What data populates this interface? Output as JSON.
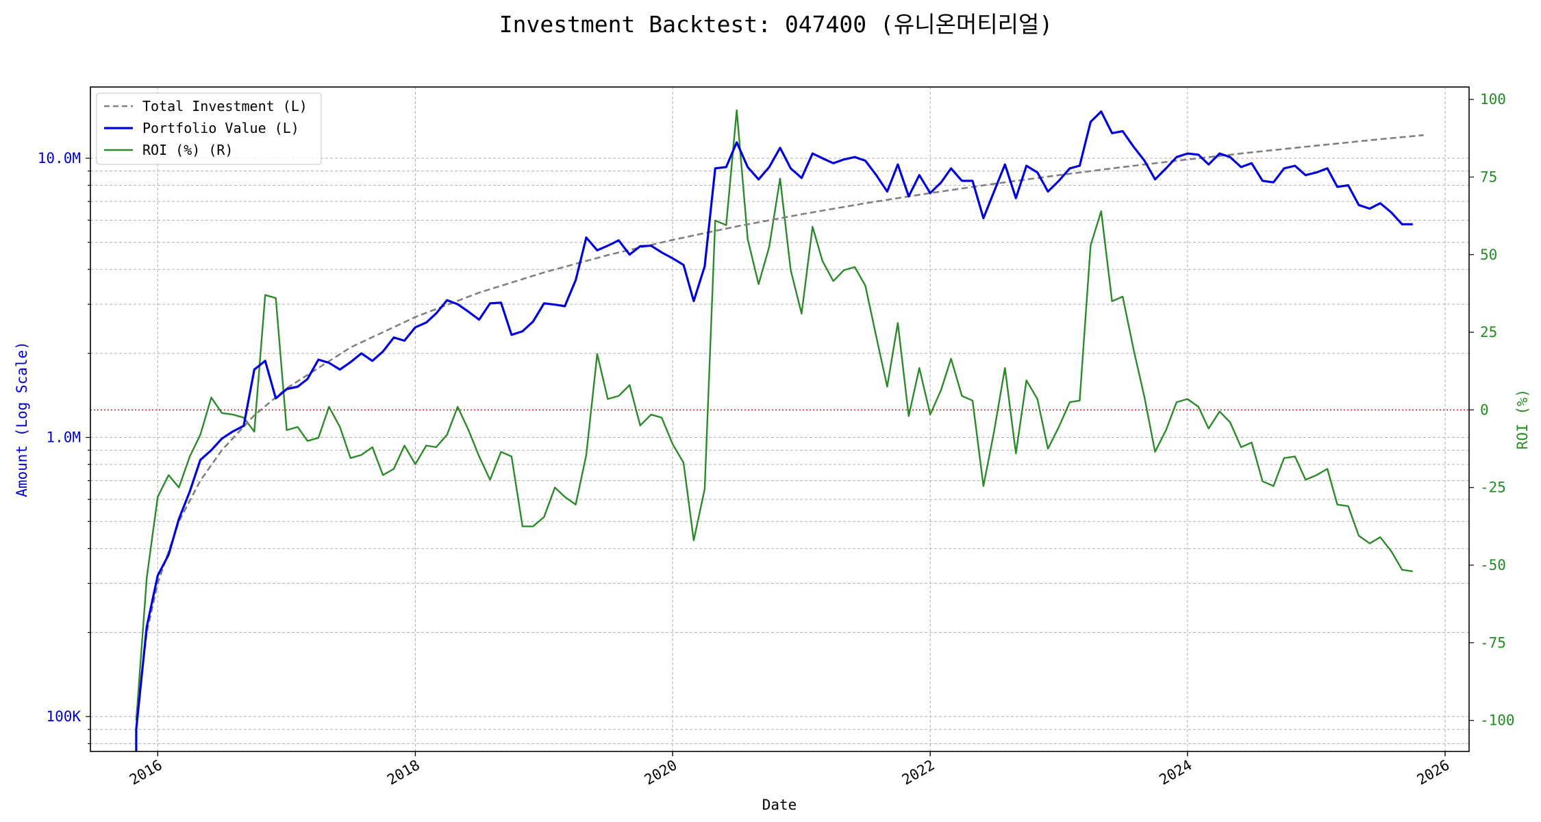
{
  "chart_data": {
    "type": "line",
    "title": "Investment Backtest: 047400 (유니온머티리얼)",
    "xlabel": "Date",
    "ylabel_left": "Amount (Log Scale)",
    "ylabel_right": "ROI (%)",
    "left_scale": "log",
    "left_ylim": [
      75000,
      18000000
    ],
    "right_ylim": [
      -110,
      104
    ],
    "xlim": [
      "2015-06-24",
      "2026-03-10"
    ],
    "x_ticks": [
      "2016",
      "2018",
      "2020",
      "2022",
      "2024",
      "2026"
    ],
    "left_ticks": [
      "100K",
      "1.0M",
      "10.0M"
    ],
    "right_ticks": [
      "-100",
      "-75",
      "-50",
      "-25",
      "0",
      "25",
      "50",
      "75",
      "100"
    ],
    "grid": true,
    "legend_position": "top-left",
    "reference_line": {
      "axis": "right",
      "value": 0,
      "color": "#d62728",
      "style": "dotted"
    },
    "colors": {
      "total_investment": "#808080",
      "portfolio_value": "#0000dd",
      "roi": "#2a8a2a",
      "left_axis": "#0000cc",
      "right_axis": "#228b22"
    },
    "series": [
      {
        "name": "Total Investment (L)",
        "axis": "left",
        "style": "dashed",
        "points": [
          [
            "2015-11-01",
            100000
          ],
          [
            "2015-12-01",
            200000
          ],
          [
            "2016-01-01",
            300000
          ],
          [
            "2016-03-01",
            500000
          ],
          [
            "2016-05-01",
            700000
          ],
          [
            "2016-07-01",
            900000
          ],
          [
            "2016-10-01",
            1200000
          ],
          [
            "2017-01-01",
            1500000
          ],
          [
            "2017-07-01",
            2100000
          ],
          [
            "2018-01-01",
            2700000
          ],
          [
            "2018-07-01",
            3300000
          ],
          [
            "2019-01-01",
            3900000
          ],
          [
            "2019-07-01",
            4500000
          ],
          [
            "2020-01-01",
            5100000
          ],
          [
            "2020-07-01",
            5700000
          ],
          [
            "2021-01-01",
            6300000
          ],
          [
            "2021-07-01",
            6900000
          ],
          [
            "2022-01-01",
            7500000
          ],
          [
            "2022-07-01",
            8100000
          ],
          [
            "2023-01-01",
            8700000
          ],
          [
            "2023-07-01",
            9300000
          ],
          [
            "2024-01-01",
            9900000
          ],
          [
            "2024-07-01",
            10500000
          ],
          [
            "2025-01-01",
            11100000
          ],
          [
            "2025-07-01",
            11700000
          ],
          [
            "2025-11-01",
            12100000
          ]
        ]
      },
      {
        "name": "Portfolio Value (L)",
        "axis": "left",
        "style": "solid",
        "points": [
          [
            "2015-11-01",
            70000
          ],
          [
            "2015-11-01",
            90000
          ],
          [
            "2015-12-01",
            210000
          ],
          [
            "2016-01-01",
            320000
          ],
          [
            "2016-02-01",
            380000
          ],
          [
            "2016-03-01",
            510000
          ],
          [
            "2016-04-01",
            640000
          ],
          [
            "2016-05-01",
            830000
          ],
          [
            "2016-06-01",
            900000
          ],
          [
            "2016-07-01",
            990000
          ],
          [
            "2016-08-01",
            1050000
          ],
          [
            "2016-09-01",
            1100000
          ],
          [
            "2016-10-01",
            1750000
          ],
          [
            "2016-11-01",
            1880000
          ],
          [
            "2016-12-01",
            1380000
          ],
          [
            "2017-01-01",
            1490000
          ],
          [
            "2017-02-01",
            1520000
          ],
          [
            "2017-03-01",
            1620000
          ],
          [
            "2017-04-01",
            1900000
          ],
          [
            "2017-05-01",
            1850000
          ],
          [
            "2017-06-01",
            1750000
          ],
          [
            "2017-07-01",
            1860000
          ],
          [
            "2017-08-01",
            2000000
          ],
          [
            "2017-09-01",
            1880000
          ],
          [
            "2017-10-01",
            2030000
          ],
          [
            "2017-11-01",
            2280000
          ],
          [
            "2017-12-01",
            2220000
          ],
          [
            "2018-01-01",
            2480000
          ],
          [
            "2018-02-01",
            2580000
          ],
          [
            "2018-03-01",
            2780000
          ],
          [
            "2018-04-01",
            3100000
          ],
          [
            "2018-05-01",
            3000000
          ],
          [
            "2018-06-01",
            2820000
          ],
          [
            "2018-07-01",
            2640000
          ],
          [
            "2018-08-01",
            3020000
          ],
          [
            "2018-09-01",
            3040000
          ],
          [
            "2018-10-01",
            2330000
          ],
          [
            "2018-11-01",
            2400000
          ],
          [
            "2018-12-01",
            2600000
          ],
          [
            "2019-01-01",
            3020000
          ],
          [
            "2019-02-01",
            2990000
          ],
          [
            "2019-03-01",
            2950000
          ],
          [
            "2019-04-01",
            3660000
          ],
          [
            "2019-05-01",
            5200000
          ],
          [
            "2019-06-01",
            4680000
          ],
          [
            "2019-07-01",
            4860000
          ],
          [
            "2019-08-01",
            5080000
          ],
          [
            "2019-09-01",
            4520000
          ],
          [
            "2019-10-01",
            4840000
          ],
          [
            "2019-11-01",
            4860000
          ],
          [
            "2019-12-01",
            4600000
          ],
          [
            "2020-01-01",
            4380000
          ],
          [
            "2020-02-01",
            4150000
          ],
          [
            "2020-03-01",
            3080000
          ],
          [
            "2020-04-01",
            4100000
          ],
          [
            "2020-05-01",
            9200000
          ],
          [
            "2020-06-01",
            9300000
          ],
          [
            "2020-07-01",
            11400000
          ],
          [
            "2020-08-01",
            9300000
          ],
          [
            "2020-09-01",
            8400000
          ],
          [
            "2020-10-01",
            9300000
          ],
          [
            "2020-11-01",
            10900000
          ],
          [
            "2020-12-01",
            9200000
          ],
          [
            "2021-01-01",
            8500000
          ],
          [
            "2021-02-01",
            10400000
          ],
          [
            "2021-03-01",
            10000000
          ],
          [
            "2021-04-01",
            9600000
          ],
          [
            "2021-05-01",
            9900000
          ],
          [
            "2021-06-01",
            10100000
          ],
          [
            "2021-07-01",
            9800000
          ],
          [
            "2021-08-01",
            8700000
          ],
          [
            "2021-09-01",
            7600000
          ],
          [
            "2021-10-01",
            9500000
          ],
          [
            "2021-11-01",
            7300000
          ],
          [
            "2021-12-01",
            8700000
          ],
          [
            "2022-01-01",
            7500000
          ],
          [
            "2022-02-01",
            8200000
          ],
          [
            "2022-03-01",
            9200000
          ],
          [
            "2022-04-01",
            8300000
          ],
          [
            "2022-05-01",
            8300000
          ],
          [
            "2022-06-01",
            6100000
          ],
          [
            "2022-07-01",
            7600000
          ],
          [
            "2022-08-01",
            9500000
          ],
          [
            "2022-09-01",
            7200000
          ],
          [
            "2022-10-01",
            9400000
          ],
          [
            "2022-11-01",
            8900000
          ],
          [
            "2022-12-01",
            7600000
          ],
          [
            "2023-01-01",
            8300000
          ],
          [
            "2023-02-01",
            9200000
          ],
          [
            "2023-03-01",
            9400000
          ],
          [
            "2023-04-01",
            13500000
          ],
          [
            "2023-05-01",
            14700000
          ],
          [
            "2023-06-01",
            12300000
          ],
          [
            "2023-07-01",
            12500000
          ],
          [
            "2023-08-01",
            11000000
          ],
          [
            "2023-09-01",
            9800000
          ],
          [
            "2023-10-01",
            8400000
          ],
          [
            "2023-11-01",
            9200000
          ],
          [
            "2023-12-01",
            10100000
          ],
          [
            "2024-01-01",
            10400000
          ],
          [
            "2024-02-01",
            10300000
          ],
          [
            "2024-03-01",
            9500000
          ],
          [
            "2024-04-01",
            10400000
          ],
          [
            "2024-05-01",
            10100000
          ],
          [
            "2024-06-01",
            9300000
          ],
          [
            "2024-07-01",
            9600000
          ],
          [
            "2024-08-01",
            8300000
          ],
          [
            "2024-09-01",
            8200000
          ],
          [
            "2024-10-01",
            9200000
          ],
          [
            "2024-11-01",
            9400000
          ],
          [
            "2024-12-01",
            8700000
          ],
          [
            "2025-01-01",
            8900000
          ],
          [
            "2025-02-01",
            9200000
          ],
          [
            "2025-03-01",
            7900000
          ],
          [
            "2025-04-01",
            8000000
          ],
          [
            "2025-05-01",
            6800000
          ],
          [
            "2025-06-01",
            6600000
          ],
          [
            "2025-07-01",
            6900000
          ],
          [
            "2025-08-01",
            6400000
          ],
          [
            "2025-09-01",
            5800000
          ],
          [
            "2025-10-01",
            5800000
          ]
        ]
      },
      {
        "name": "ROI (%) (R)",
        "axis": "right",
        "style": "solid",
        "points": [
          [
            "2015-11-01",
            -100
          ],
          [
            "2015-12-01",
            -54
          ],
          [
            "2016-01-01",
            -28
          ],
          [
            "2016-02-01",
            -21
          ],
          [
            "2016-03-01",
            -25
          ],
          [
            "2016-04-01",
            -15
          ],
          [
            "2016-05-01",
            -8
          ],
          [
            "2016-06-01",
            4
          ],
          [
            "2016-07-01",
            -1
          ],
          [
            "2016-08-01",
            -1.5
          ],
          [
            "2016-09-01",
            -2.5
          ],
          [
            "2016-10-01",
            -7
          ],
          [
            "2016-11-01",
            37
          ],
          [
            "2016-12-01",
            36
          ],
          [
            "2017-01-01",
            -6.5
          ],
          [
            "2017-02-01",
            -5.5
          ],
          [
            "2017-03-01",
            -10
          ],
          [
            "2017-04-01",
            -9
          ],
          [
            "2017-05-01",
            1
          ],
          [
            "2017-06-01",
            -5.5
          ],
          [
            "2017-07-01",
            -15.5
          ],
          [
            "2017-08-01",
            -14.5
          ],
          [
            "2017-09-01",
            -12
          ],
          [
            "2017-10-01",
            -21
          ],
          [
            "2017-11-01",
            -19
          ],
          [
            "2017-12-01",
            -11.5
          ],
          [
            "2018-01-01",
            -17.5
          ],
          [
            "2018-02-01",
            -11.5
          ],
          [
            "2018-03-01",
            -12
          ],
          [
            "2018-04-01",
            -8
          ],
          [
            "2018-05-01",
            1
          ],
          [
            "2018-06-01",
            -6.5
          ],
          [
            "2018-07-01",
            -15
          ],
          [
            "2018-08-01",
            -22.5
          ],
          [
            "2018-09-01",
            -13.5
          ],
          [
            "2018-10-01",
            -15
          ],
          [
            "2018-11-01",
            -37.5
          ],
          [
            "2018-12-01",
            -37.5
          ],
          [
            "2019-01-01",
            -34.5
          ],
          [
            "2019-02-01",
            -25
          ],
          [
            "2019-03-01",
            -28
          ],
          [
            "2019-04-01",
            -30.5
          ],
          [
            "2019-05-01",
            -14.5
          ],
          [
            "2019-06-01",
            18
          ],
          [
            "2019-07-01",
            3.5
          ],
          [
            "2019-08-01",
            4.5
          ],
          [
            "2019-09-01",
            8
          ],
          [
            "2019-10-01",
            -5
          ],
          [
            "2019-11-01",
            -1.5
          ],
          [
            "2019-12-01",
            -2.5
          ],
          [
            "2020-01-01",
            -11
          ],
          [
            "2020-02-01",
            -17
          ],
          [
            "2020-03-01",
            -42
          ],
          [
            "2020-04-01",
            -25.5
          ],
          [
            "2020-05-01",
            61
          ],
          [
            "2020-06-01",
            59.5
          ],
          [
            "2020-07-01",
            96.5
          ],
          [
            "2020-08-01",
            55
          ],
          [
            "2020-09-01",
            40.5
          ],
          [
            "2020-10-01",
            52.5
          ],
          [
            "2020-11-01",
            74.5
          ],
          [
            "2020-12-01",
            45
          ],
          [
            "2021-01-01",
            31
          ],
          [
            "2021-02-01",
            59
          ],
          [
            "2021-03-01",
            48
          ],
          [
            "2021-04-01",
            41.5
          ],
          [
            "2021-05-01",
            45
          ],
          [
            "2021-06-01",
            46
          ],
          [
            "2021-07-01",
            40
          ],
          [
            "2021-08-01",
            23.5
          ],
          [
            "2021-09-01",
            7.5
          ],
          [
            "2021-10-01",
            28
          ],
          [
            "2021-11-01",
            -2
          ],
          [
            "2021-12-01",
            13.5
          ],
          [
            "2022-01-01",
            -1.5
          ],
          [
            "2022-02-01",
            6.5
          ],
          [
            "2022-03-01",
            16.5
          ],
          [
            "2022-04-01",
            4.5
          ],
          [
            "2022-05-01",
            3
          ],
          [
            "2022-06-01",
            -24.5
          ],
          [
            "2022-07-01",
            -7
          ],
          [
            "2022-08-01",
            13.5
          ],
          [
            "2022-09-01",
            -14
          ],
          [
            "2022-10-01",
            9.5
          ],
          [
            "2022-11-01",
            3.5
          ],
          [
            "2022-12-01",
            -12.5
          ],
          [
            "2023-01-01",
            -5.5
          ],
          [
            "2023-02-01",
            2.5
          ],
          [
            "2023-03-01",
            3
          ],
          [
            "2023-04-01",
            53
          ],
          [
            "2023-05-01",
            64
          ],
          [
            "2023-06-01",
            35
          ],
          [
            "2023-07-01",
            36.5
          ],
          [
            "2023-08-01",
            19.5
          ],
          [
            "2023-09-01",
            4
          ],
          [
            "2023-10-01",
            -13.5
          ],
          [
            "2023-11-01",
            -6.5
          ],
          [
            "2023-12-01",
            2.5
          ],
          [
            "2024-01-01",
            3.5
          ],
          [
            "2024-02-01",
            1
          ],
          [
            "2024-03-01",
            -6
          ],
          [
            "2024-04-01",
            -0.5
          ],
          [
            "2024-05-01",
            -4
          ],
          [
            "2024-06-01",
            -12
          ],
          [
            "2024-07-01",
            -10.5
          ],
          [
            "2024-08-01",
            -23
          ],
          [
            "2024-09-01",
            -24.5
          ],
          [
            "2024-10-01",
            -15.5
          ],
          [
            "2024-11-01",
            -15
          ],
          [
            "2024-12-01",
            -22.5
          ],
          [
            "2025-01-01",
            -21
          ],
          [
            "2025-02-01",
            -19
          ],
          [
            "2025-03-01",
            -30.5
          ],
          [
            "2025-04-01",
            -31
          ],
          [
            "2025-05-01",
            -40.5
          ],
          [
            "2025-06-01",
            -43
          ],
          [
            "2025-07-01",
            -41
          ],
          [
            "2025-08-01",
            -45.5
          ],
          [
            "2025-09-01",
            -51.5
          ],
          [
            "2025-10-01",
            -52
          ]
        ]
      }
    ]
  }
}
